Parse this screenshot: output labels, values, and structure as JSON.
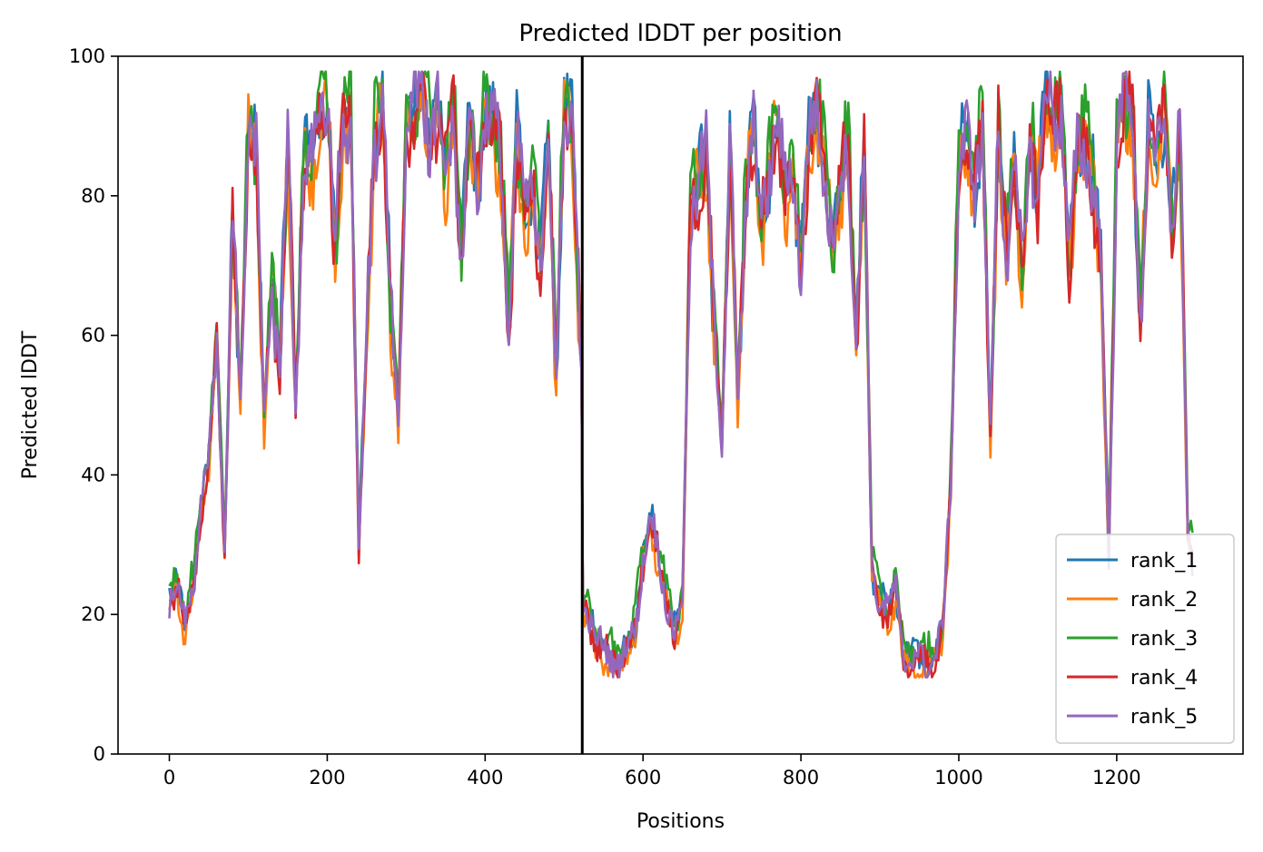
{
  "chart_data": {
    "type": "line",
    "title": "Predicted lDDT per position",
    "xlabel": "Positions",
    "ylabel": "Predicted lDDT",
    "xlim": [
      -65,
      1360
    ],
    "ylim": [
      0,
      100
    ],
    "xticks": [
      0,
      200,
      400,
      600,
      800,
      1000,
      1200
    ],
    "yticks": [
      0,
      20,
      40,
      60,
      80,
      100
    ],
    "grid": false,
    "legend_position": "lower-right",
    "chain_boundary_x": 523,
    "series": [
      {
        "name": "rank_1",
        "color": "#1f77b4"
      },
      {
        "name": "rank_2",
        "color": "#ff7f0e"
      },
      {
        "name": "rank_3",
        "color": "#2ca02c"
      },
      {
        "name": "rank_4",
        "color": "#d62728"
      },
      {
        "name": "rank_5",
        "color": "#9467bd"
      }
    ],
    "x": [
      0,
      10,
      20,
      30,
      40,
      50,
      60,
      70,
      80,
      90,
      100,
      110,
      120,
      130,
      140,
      150,
      160,
      170,
      180,
      190,
      200,
      210,
      220,
      230,
      240,
      250,
      260,
      270,
      280,
      290,
      300,
      310,
      320,
      330,
      340,
      350,
      360,
      370,
      380,
      390,
      400,
      410,
      420,
      430,
      440,
      450,
      460,
      470,
      480,
      490,
      500,
      510,
      522,
      523,
      530,
      540,
      550,
      560,
      570,
      580,
      590,
      600,
      610,
      620,
      630,
      640,
      650,
      660,
      670,
      680,
      690,
      700,
      710,
      720,
      730,
      740,
      750,
      760,
      770,
      780,
      790,
      800,
      810,
      820,
      830,
      840,
      850,
      860,
      870,
      880,
      890,
      900,
      910,
      920,
      930,
      940,
      950,
      960,
      970,
      980,
      990,
      1000,
      1010,
      1020,
      1030,
      1040,
      1050,
      1060,
      1070,
      1080,
      1090,
      1100,
      1110,
      1120,
      1130,
      1140,
      1150,
      1160,
      1170,
      1180,
      1190,
      1200,
      1210,
      1220,
      1230,
      1240,
      1250,
      1260,
      1270,
      1280,
      1290,
      1296
    ],
    "base_values": [
      22,
      25,
      18,
      24,
      35,
      42,
      60,
      28,
      78,
      50,
      90,
      86,
      48,
      68,
      55,
      87,
      50,
      85,
      84,
      92,
      94,
      72,
      90,
      91,
      30,
      60,
      88,
      94,
      65,
      48,
      90,
      92,
      96,
      88,
      93,
      84,
      93,
      70,
      92,
      80,
      94,
      90,
      85,
      60,
      88,
      78,
      82,
      70,
      88,
      55,
      92,
      90,
      55,
      20,
      21,
      16,
      15,
      14,
      13,
      15,
      18,
      28,
      34,
      28,
      22,
      17,
      22,
      78,
      82,
      86,
      62,
      45,
      88,
      50,
      80,
      90,
      74,
      84,
      92,
      80,
      84,
      70,
      88,
      92,
      84,
      72,
      82,
      88,
      58,
      87,
      26,
      22,
      20,
      24,
      14,
      13,
      14,
      13,
      14,
      18,
      40,
      85,
      88,
      80,
      92,
      45,
      90,
      72,
      84,
      68,
      88,
      80,
      95,
      90,
      94,
      70,
      86,
      88,
      82,
      70,
      28,
      88,
      94,
      92,
      62,
      90,
      84,
      92,
      75,
      90,
      32,
      28
    ]
  },
  "legend": {
    "labels": [
      "rank_1",
      "rank_2",
      "rank_3",
      "rank_4",
      "rank_5"
    ]
  }
}
